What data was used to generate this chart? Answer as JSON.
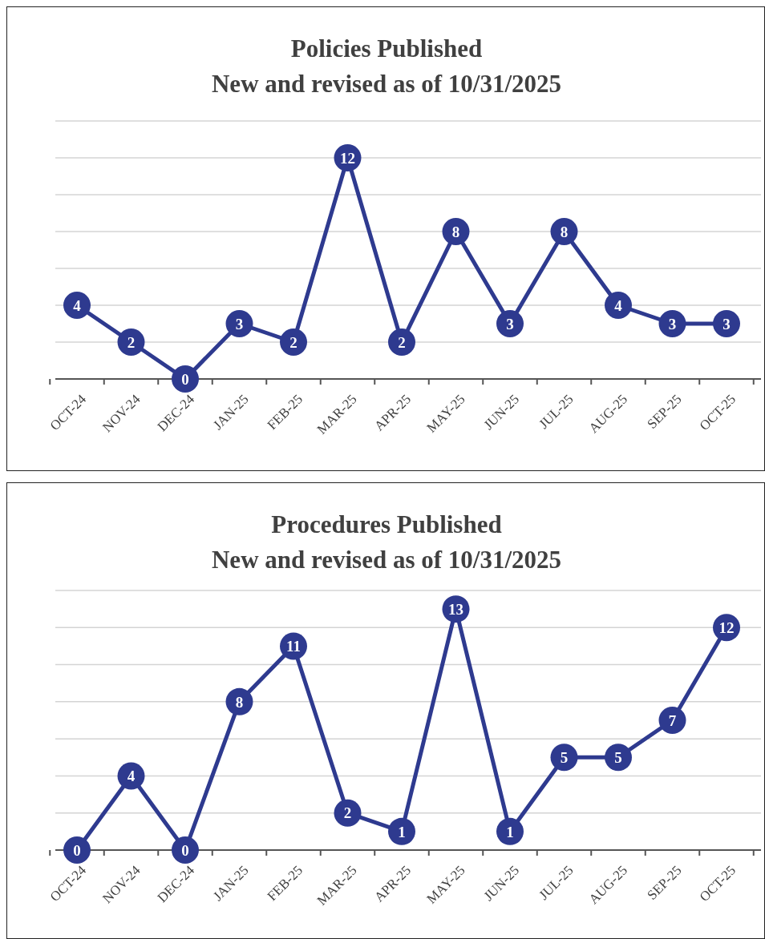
{
  "chart_data": [
    {
      "type": "line",
      "title": "Policies Published",
      "subtitle": "New and revised as of 10/31/2025",
      "categories": [
        "OCT-24",
        "NOV-24",
        "DEC-24",
        "JAN-25",
        "FEB-25",
        "MAR-25",
        "APR-25",
        "MAY-25",
        "JUN-25",
        "JUL-25",
        "AUG-25",
        "SEP-25",
        "OCT-25"
      ],
      "series": [
        {
          "color": "#2e3a8f",
          "values": [
            4,
            2,
            0,
            3,
            2,
            12,
            2,
            8,
            3,
            8,
            4,
            3,
            3
          ]
        }
      ],
      "ylim": [
        0,
        14
      ],
      "yticks": [
        {
          "value": 0,
          "label": null
        },
        {
          "value": 2,
          "label": null
        },
        {
          "value": 4,
          "label": null
        },
        {
          "value": 6,
          "label": null
        },
        {
          "value": 8,
          "label": null
        },
        {
          "value": 10,
          "label": null
        },
        {
          "value": 12,
          "label": null
        },
        {
          "value": 14,
          "label": null
        }
      ],
      "tick_labels": "x",
      "grid": "y",
      "marker": "circle",
      "line_style": "solid",
      "data_labels": true
    },
    {
      "type": "line",
      "title": "Procedures Published",
      "subtitle": "New and revised as of 10/31/2025",
      "categories": [
        "OCT-24",
        "NOV-24",
        "DEC-24",
        "JAN-25",
        "FEB-25",
        "MAR-25",
        "APR-25",
        "MAY-25",
        "JUN-25",
        "JUL-25",
        "AUG-25",
        "SEP-25",
        "OCT-25"
      ],
      "series": [
        {
          "color": "#2e3a8f",
          "values": [
            0,
            4,
            0,
            8,
            11,
            2,
            1,
            13,
            1,
            5,
            5,
            7,
            12
          ]
        }
      ],
      "ylim": [
        0,
        14
      ],
      "yticks": [
        {
          "value": 0,
          "label": null
        },
        {
          "value": 2,
          "label": null
        },
        {
          "value": 4,
          "label": null
        },
        {
          "value": 6,
          "label": null
        },
        {
          "value": 8,
          "label": null
        },
        {
          "value": 10,
          "label": null
        },
        {
          "value": 12,
          "label": null
        },
        {
          "value": 14,
          "label": null
        }
      ],
      "tick_labels": "x",
      "grid": "y",
      "marker": "circle",
      "line_style": "solid",
      "data_labels": true
    }
  ]
}
